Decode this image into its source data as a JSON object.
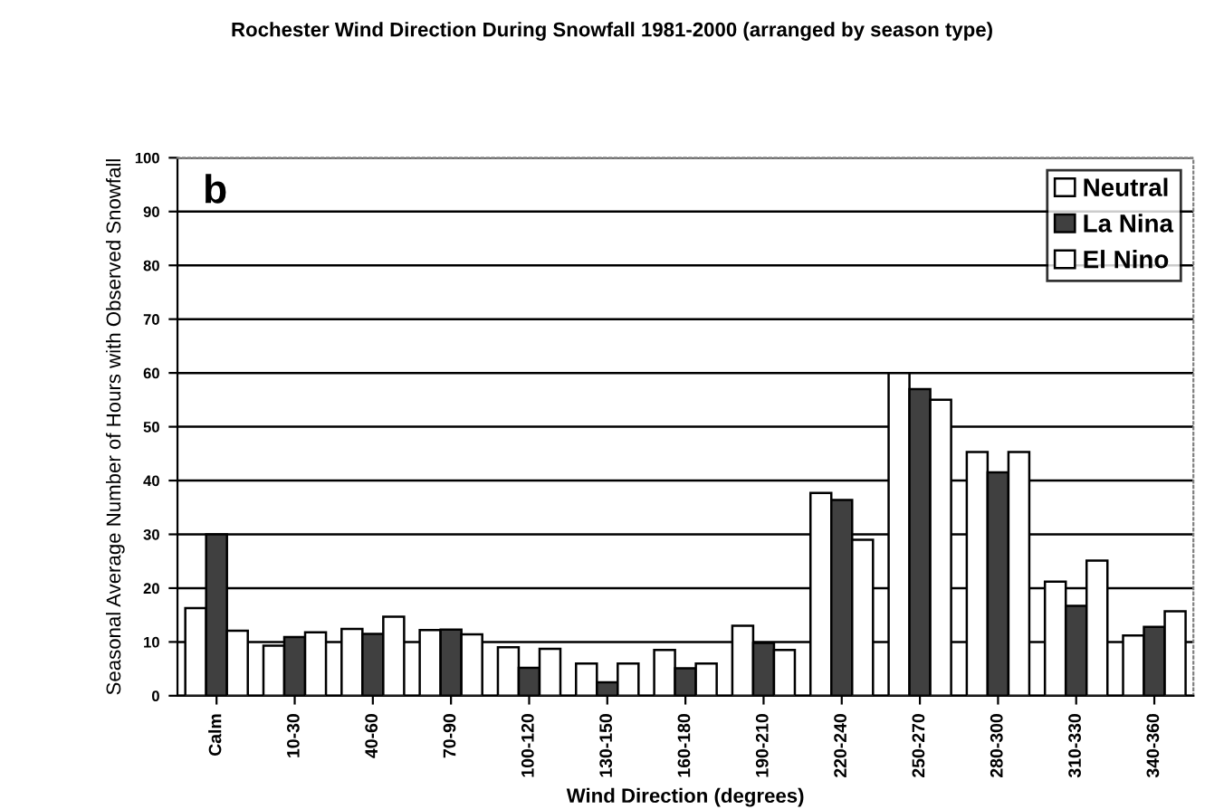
{
  "chart_data": {
    "type": "bar",
    "title": "Rochester Wind Direction During Snowfall 1981-2000 (arranged by season type)",
    "xlabel": "Wind Direction (degrees)",
    "ylabel": "Seasonal Average Number of Hours with Observed Snowfall",
    "annotations": [
      "b"
    ],
    "categories": [
      "Calm",
      "10-30",
      "40-60",
      "70-90",
      "100-120",
      "130-150",
      "160-180",
      "190-210",
      "220-240",
      "250-270",
      "280-300",
      "310-330",
      "340-360"
    ],
    "series": [
      {
        "name": "Neutral",
        "color": "#ffffff",
        "values": [
          16.3,
          9.3,
          12.4,
          12.2,
          9.0,
          6.0,
          8.5,
          13.0,
          37.7,
          60,
          45.3,
          21.2,
          11.2
        ]
      },
      {
        "name": "La Nina",
        "color": "#404040",
        "values": [
          30,
          10.9,
          11.5,
          12.3,
          5.2,
          2.5,
          5.1,
          9.8,
          36.4,
          57,
          41.5,
          16.7,
          12.8
        ]
      },
      {
        "name": "El Nino",
        "color": "#ffffff",
        "values": [
          12.1,
          11.8,
          14.7,
          11.4,
          8.7,
          6.0,
          6.0,
          8.5,
          29.0,
          55,
          45.3,
          25.1,
          15.7
        ]
      }
    ],
    "ylim": [
      0,
      100
    ],
    "yticks": [
      0,
      10,
      20,
      30,
      40,
      50,
      60,
      70,
      80,
      90,
      100
    ],
    "grid": "y",
    "legend": "top right"
  }
}
